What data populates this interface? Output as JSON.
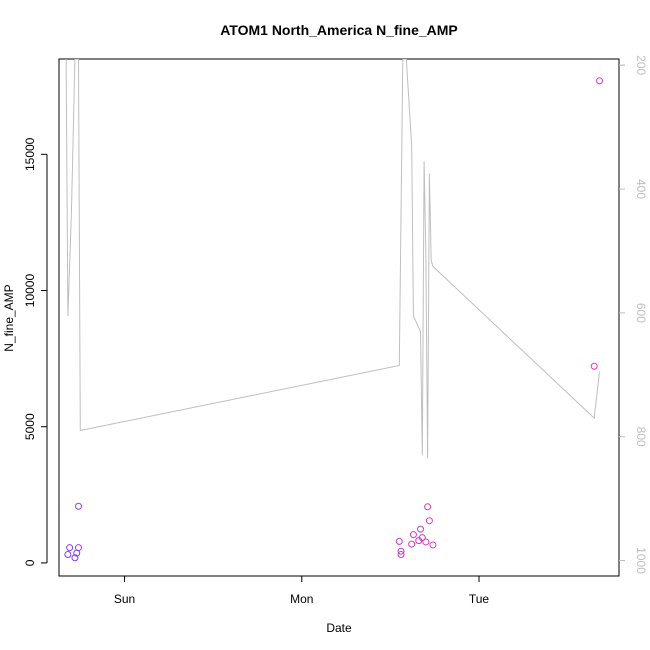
{
  "chart_data": {
    "type": "scatter",
    "title": "ATOM1 North_America N_fine_AMP",
    "xlabel": "Date",
    "ylabel": "N_fine_AMP",
    "x_ticks": [
      {
        "label": "Sun",
        "value": 1.0
      },
      {
        "label": "Mon",
        "value": 2.0
      },
      {
        "label": "Tue",
        "value": 3.0
      }
    ],
    "xlim": [
      0.63,
      3.79
    ],
    "ylim": [
      -480,
      18500
    ],
    "y_ticks": [
      0,
      5000,
      10000,
      15000
    ],
    "y_right_ticks": [
      200,
      400,
      600,
      800,
      1000
    ],
    "y_right_lim": [
      1025,
      190
    ],
    "grid": false,
    "series": [
      {
        "kind": "points",
        "points": [
          [
            0.68,
            310,
            "#7a3ff5"
          ],
          [
            0.69,
            560,
            "#8a3cf0"
          ],
          [
            0.72,
            190,
            "#7a3ff5"
          ],
          [
            0.73,
            360,
            "#8a3cf0"
          ],
          [
            0.74,
            560,
            "#9a3aea"
          ],
          [
            0.74,
            2080,
            "#9a3aea"
          ],
          [
            2.55,
            790,
            "#c23ad0"
          ],
          [
            2.56,
            310,
            "#c23ad0"
          ],
          [
            2.56,
            430,
            "#c23ad0"
          ],
          [
            2.62,
            690,
            "#d43ac6"
          ],
          [
            2.63,
            1040,
            "#d43ac6"
          ],
          [
            2.66,
            820,
            "#d43ac6"
          ],
          [
            2.67,
            1240,
            "#d43ac6"
          ],
          [
            2.68,
            930,
            "#d43ac6"
          ],
          [
            2.7,
            770,
            "#d43ac6"
          ],
          [
            2.71,
            2060,
            "#dc38c0"
          ],
          [
            2.72,
            1550,
            "#dc38c0"
          ],
          [
            2.74,
            660,
            "#dc38c0"
          ],
          [
            3.65,
            7220,
            "#ec36b4"
          ],
          [
            3.68,
            17700,
            "#ec36b4"
          ]
        ]
      },
      {
        "kind": "line",
        "color": "#bfbfbf",
        "axis": "right",
        "points": [
          [
            0.67,
            190
          ],
          [
            0.68,
            605
          ],
          [
            0.7,
            440
          ],
          [
            0.72,
            190
          ],
          [
            0.74,
            190
          ],
          [
            0.75,
            790
          ],
          [
            2.55,
            685
          ],
          [
            2.57,
            190
          ],
          [
            2.59,
            190
          ],
          [
            2.62,
            330
          ],
          [
            2.63,
            605
          ],
          [
            2.67,
            630
          ],
          [
            2.68,
            830
          ],
          [
            2.69,
            355
          ],
          [
            2.7,
            500
          ],
          [
            2.71,
            835
          ],
          [
            2.72,
            375
          ],
          [
            2.73,
            515
          ],
          [
            2.74,
            525
          ],
          [
            3.65,
            770
          ],
          [
            3.68,
            695
          ]
        ]
      }
    ]
  }
}
